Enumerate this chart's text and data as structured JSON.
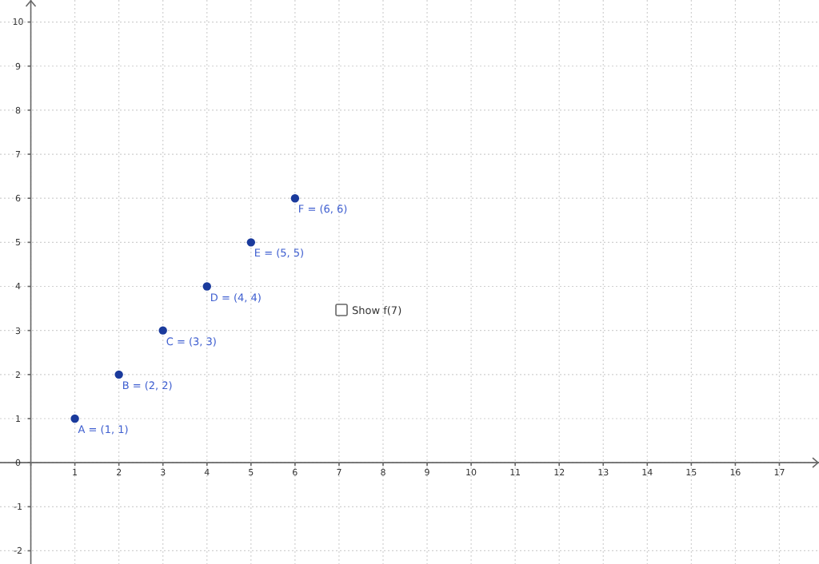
{
  "chart_data": {
    "type": "scatter",
    "x": [
      1,
      2,
      3,
      4,
      5,
      6
    ],
    "series": [
      {
        "color": "#1a3a9c",
        "values": [
          1,
          2,
          3,
          4,
          5,
          6
        ],
        "value_labels": [
          "A = (1, 1)",
          "B = (2, 2)",
          "C = (3, 3)",
          "D = (4, 4)",
          "E = (5, 5)",
          "F = (6, 6)"
        ]
      }
    ],
    "xlim": [
      -0.7,
      17.9
    ],
    "ylim": [
      -2.3,
      10.5
    ],
    "xticks": [
      {
        "value": 0,
        "label": null
      },
      1,
      2,
      3,
      4,
      5,
      6,
      7,
      8,
      9,
      10,
      11,
      12,
      13,
      14,
      15,
      16,
      17
    ],
    "yticks": [
      -2,
      -1,
      0,
      1,
      2,
      3,
      4,
      5,
      6,
      7,
      8,
      9,
      10
    ],
    "grid": true,
    "marker": "circle",
    "annotations": [
      "Show f(7)"
    ]
  }
}
